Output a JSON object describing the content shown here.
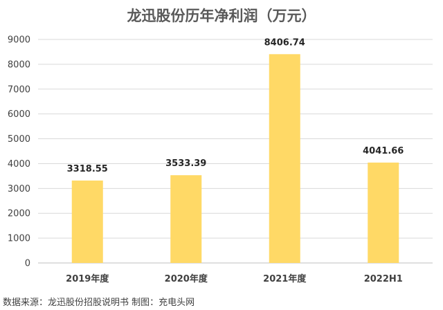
{
  "chart_data": {
    "type": "bar",
    "title": "龙迅股份历年净利润（万元）",
    "categories": [
      "2019年度",
      "2020年度",
      "2021年度",
      "2022H1"
    ],
    "values": [
      3318.55,
      3533.39,
      8406.74,
      4041.66
    ],
    "data_labels": [
      "3318.55",
      "3533.39",
      "8406.74",
      "4041.66"
    ],
    "y_ticks": [
      0,
      1000,
      2000,
      3000,
      4000,
      5000,
      6000,
      7000,
      8000,
      9000
    ],
    "ylim": [
      0,
      9000
    ],
    "grid": true,
    "bar_color": "#FFD966",
    "source": "数据来源：龙迅股份招股说明书 制图：充电头网"
  }
}
